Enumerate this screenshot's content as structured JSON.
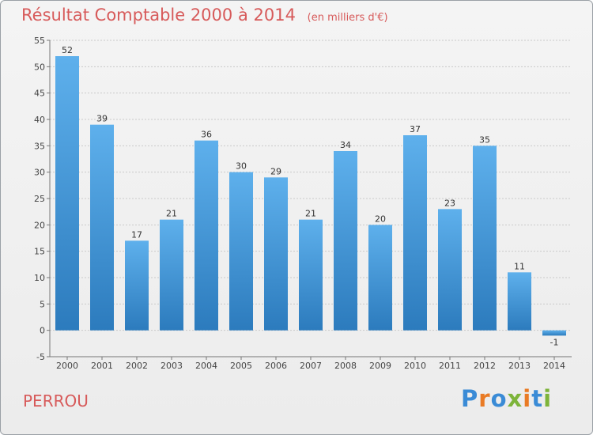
{
  "header": {
    "title": "Résultat Comptable 2000 à 2014",
    "unit": "(en milliers d'€)"
  },
  "footer": {
    "commune": "PERROU",
    "logo_letters": [
      "P",
      "r",
      "o",
      "x",
      "i",
      "t",
      "i"
    ],
    "logo_colors": [
      "#3a8bd6",
      "#e97b25",
      "#3a8bd6",
      "#7db43a",
      "#e97b25",
      "#3a8bd6",
      "#7db43a"
    ]
  },
  "colors": {
    "bar_top": "#5eb0ec",
    "bar_bottom": "#2c7bbd",
    "grid": "#c9c9c9",
    "title": "#d75a5a"
  },
  "chart_data": {
    "type": "bar",
    "title": "Résultat Comptable 2000 à 2014",
    "xlabel": "",
    "ylabel": "",
    "categories": [
      "2000",
      "2001",
      "2002",
      "2003",
      "2004",
      "2005",
      "2006",
      "2007",
      "2008",
      "2009",
      "2010",
      "2011",
      "2012",
      "2013",
      "2014"
    ],
    "values": [
      52,
      39,
      17,
      21,
      36,
      30,
      29,
      21,
      34,
      20,
      37,
      23,
      35,
      11,
      -1
    ],
    "ylim": [
      -5,
      55
    ],
    "yticks": [
      -5,
      0,
      5,
      10,
      15,
      20,
      25,
      30,
      35,
      40,
      45,
      50,
      55
    ],
    "grid": true
  }
}
